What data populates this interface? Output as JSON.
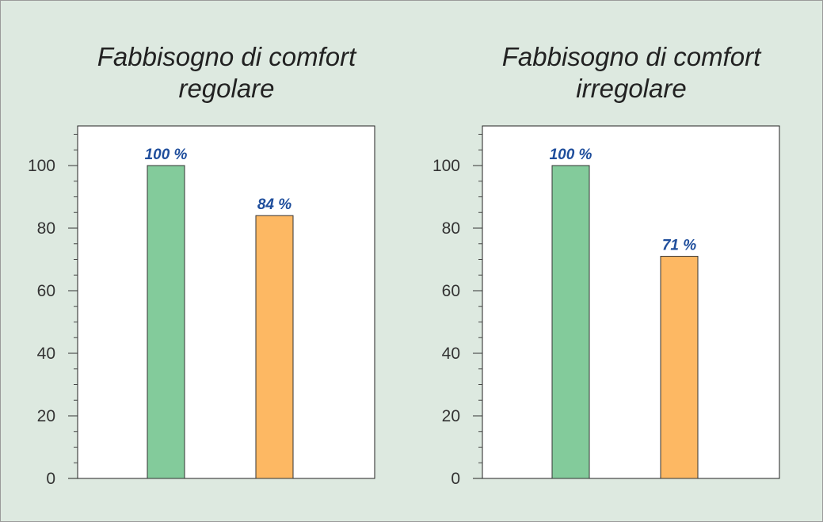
{
  "colors": {
    "background": "#dde9e0",
    "plot_background": "#ffffff",
    "bar_green": "#83cb9b",
    "bar_orange": "#fdb863",
    "label_blue": "#1f4e9c"
  },
  "chart_data": [
    {
      "type": "bar",
      "title": [
        "Fabbisogno di comfort",
        "regolare"
      ],
      "categories": [
        "",
        ""
      ],
      "values": [
        100,
        84
      ],
      "data_labels": [
        "100 %",
        "84 %"
      ],
      "bar_colors": [
        "#83cb9b",
        "#fdb863"
      ],
      "ylim": [
        0,
        110
      ],
      "yticks": [
        0,
        20,
        40,
        60,
        80,
        100
      ],
      "grid": false,
      "legend": "none"
    },
    {
      "type": "bar",
      "title": [
        "Fabbisogno di comfort",
        "irregolare"
      ],
      "categories": [
        "",
        ""
      ],
      "values": [
        100,
        71
      ],
      "data_labels": [
        "100 %",
        "71 %"
      ],
      "bar_colors": [
        "#83cb9b",
        "#fdb863"
      ],
      "ylim": [
        0,
        110
      ],
      "yticks": [
        0,
        20,
        40,
        60,
        80,
        100
      ],
      "grid": false,
      "legend": "none"
    }
  ]
}
